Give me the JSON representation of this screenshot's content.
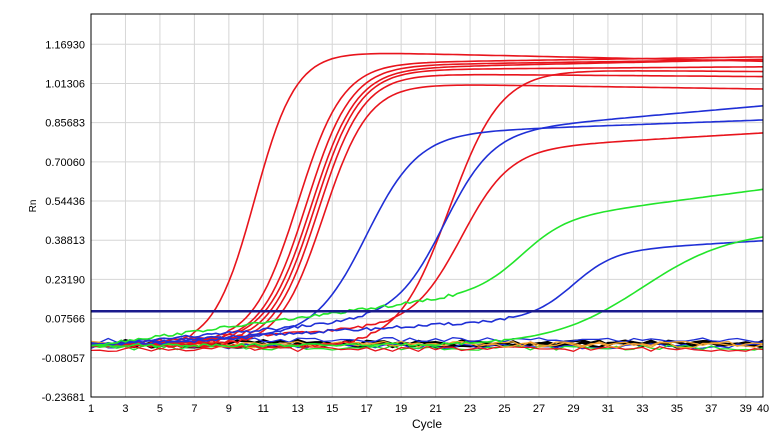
{
  "chart_data": {
    "type": "line",
    "xlabel": "Cycle",
    "ylabel": "Rn",
    "xlim": [
      1,
      40
    ],
    "ylim": [
      -0.23681,
      1.29
    ],
    "x_ticks": [
      "1",
      "3",
      "5",
      "7",
      "9",
      "11",
      "13",
      "15",
      "17",
      "19",
      "21",
      "23",
      "25",
      "27",
      "29",
      "31",
      "33",
      "35",
      "37",
      "39",
      "40"
    ],
    "y_ticks": [
      "-0.23681",
      "-0.08057",
      "0.07566",
      "0.23190",
      "0.38813",
      "0.54436",
      "0.70060",
      "0.85683",
      "1.01306",
      "1.16930"
    ],
    "grid": true,
    "threshold": {
      "value": 0.105,
      "color": "#1a1a8c"
    },
    "colors": {
      "red": "#e8141c",
      "blue": "#1f2fd6",
      "green": "#22e52a",
      "black": "#000000",
      "orange": "#f0a030",
      "threshold": "#1a1a8c"
    },
    "curve_model": "sigmoid(cycle; baseline, plateau, midpoint_cycle, slope, drift_per_cycle)",
    "series": [
      {
        "color": "red",
        "baseline": -0.03,
        "plateau": 1.19,
        "mid": 10.5,
        "slope": 1.2,
        "drift": -0.0015
      },
      {
        "color": "red",
        "baseline": -0.03,
        "plateau": 1.11,
        "mid": 13.0,
        "slope": 1.3,
        "drift": 0.001
      },
      {
        "color": "red",
        "baseline": -0.03,
        "plateau": 1.1,
        "mid": 13.5,
        "slope": 1.3,
        "drift": 0.001
      },
      {
        "color": "red",
        "baseline": -0.03,
        "plateau": 1.08,
        "mid": 13.8,
        "slope": 1.3,
        "drift": 0.0015
      },
      {
        "color": "red",
        "baseline": -0.03,
        "plateau": 1.09,
        "mid": 14.0,
        "slope": 1.3,
        "drift": 0.0005
      },
      {
        "color": "red",
        "baseline": -0.03,
        "plateau": 1.09,
        "mid": 14.2,
        "slope": 1.3,
        "drift": -0.0005
      },
      {
        "color": "red",
        "baseline": -0.03,
        "plateau": 1.06,
        "mid": 14.5,
        "slope": 1.3,
        "drift": -0.001
      },
      {
        "color": "red",
        "baseline": -0.03,
        "plateau": 1.11,
        "mid": 21.8,
        "slope": 1.5,
        "drift": -0.0005
      },
      {
        "color": "red",
        "baseline": -0.03,
        "plateau": 0.69,
        "mid": 22.5,
        "slope": 1.4,
        "drift": 0.004
      },
      {
        "color": "blue",
        "baseline": -0.03,
        "plateau": 0.8,
        "mid": 17.0,
        "slope": 1.5,
        "drift": 0.0025
      },
      {
        "color": "blue",
        "baseline": -0.03,
        "plateau": 0.72,
        "mid": 21.5,
        "slope": 1.4,
        "drift": 0.006
      },
      {
        "color": "blue",
        "baseline": -0.03,
        "plateau": 0.26,
        "mid": 29.0,
        "slope": 1.2,
        "drift": 0.004
      },
      {
        "color": "green",
        "baseline": -0.03,
        "plateau": 0.27,
        "mid": 26.0,
        "slope": 1.3,
        "drift": 0.009
      },
      {
        "color": "green",
        "baseline": -0.03,
        "plateau": 0.46,
        "mid": 33.0,
        "slope": 2.6,
        "drift": 0.0
      }
    ],
    "baseline_traces": [
      {
        "color": "black",
        "level": -0.03
      },
      {
        "color": "black",
        "level": -0.02
      },
      {
        "color": "blue",
        "level": -0.035
      },
      {
        "color": "blue",
        "level": -0.01
      },
      {
        "color": "green",
        "level": -0.04
      },
      {
        "color": "red",
        "level": -0.045
      },
      {
        "color": "orange",
        "level": -0.03
      },
      {
        "color": "orange",
        "level": -0.025
      }
    ]
  }
}
